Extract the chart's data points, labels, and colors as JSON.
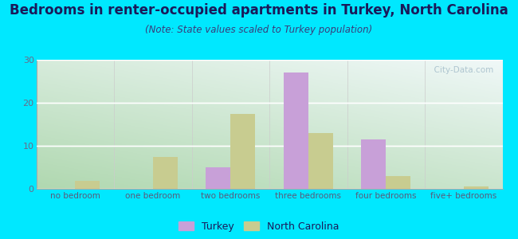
{
  "title": "Bedrooms in renter-occupied apartments in Turkey, North Carolina",
  "subtitle": "(Note: State values scaled to Turkey population)",
  "categories": [
    "no bedroom",
    "one bedroom",
    "two bedrooms",
    "three bedrooms",
    "four bedrooms",
    "five+ bedrooms"
  ],
  "turkey_values": [
    0,
    0,
    5,
    27,
    11.5,
    0
  ],
  "nc_values": [
    1.8,
    7.5,
    17.5,
    13,
    3,
    0.5
  ],
  "turkey_color": "#c8a0d8",
  "nc_color": "#c8cc90",
  "bar_width": 0.32,
  "ylim": [
    0,
    30
  ],
  "yticks": [
    0,
    10,
    20,
    30
  ],
  "background_outer": "#00e8ff",
  "title_color": "#1a1a5a",
  "subtitle_color": "#3a3a7a",
  "axis_label_color": "#5a5a7a",
  "tick_color": "#6a6a8a",
  "watermark_text": "  City-Data.com",
  "watermark_color": "#a8c0cc",
  "legend_turkey_label": "Turkey",
  "legend_nc_label": "North Carolina",
  "title_fontsize": 12,
  "subtitle_fontsize": 8.5,
  "axis_fontsize": 7.5,
  "tick_fontsize": 8,
  "grad_bottom_left": "#b0d8b0",
  "grad_top_right": "#f0f8f8"
}
